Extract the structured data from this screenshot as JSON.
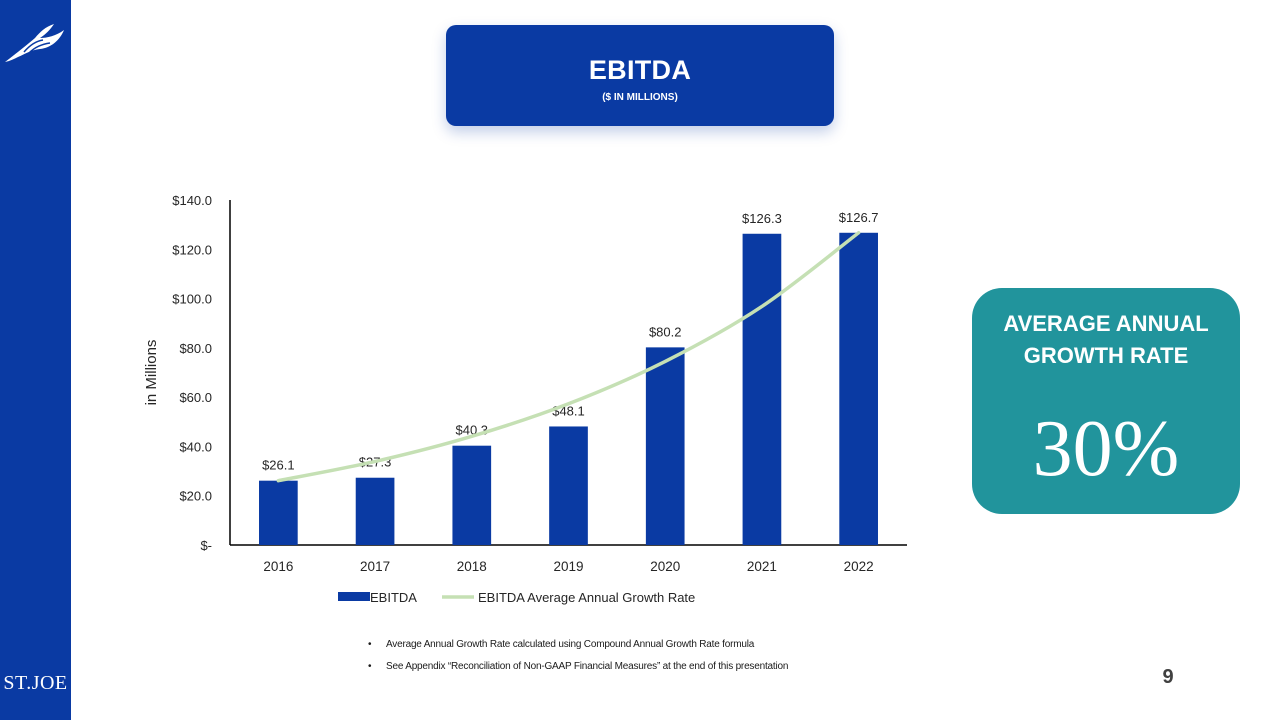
{
  "slide": {
    "title": "EBITDA",
    "subtitle": "($ IN MILLIONS)",
    "page_number": "9",
    "brand_logo_text": "ST.JOE",
    "growth_card": {
      "label": "AVERAGE ANNUAL GROWTH RATE",
      "value": "30%"
    },
    "notes": [
      "Average Annual Growth Rate calculated using Compound Annual Growth Rate formula",
      "See Appendix “Reconciliation of Non-GAAP Financial Measures” at the end of this presentation"
    ],
    "colors": {
      "sidebar": "#0a3aa3",
      "bar": "#0a3aa3",
      "trend_line": "#c5e0b4",
      "growth_card": "#21949c"
    },
    "icons": [
      "bird-logo-icon"
    ]
  },
  "chart_data": {
    "type": "bar",
    "title": "",
    "xlabel": "",
    "ylabel": "in Millions",
    "categories": [
      "2016",
      "2017",
      "2018",
      "2019",
      "2020",
      "2021",
      "2022"
    ],
    "series": [
      {
        "name": "EBITDA",
        "type": "bar",
        "values": [
          26.1,
          27.3,
          40.3,
          48.1,
          80.2,
          126.3,
          126.7
        ],
        "data_labels": [
          "$26.1",
          "$27.3",
          "$40.3",
          "$48.1",
          "$80.2",
          "$126.3",
          "$126.7"
        ]
      },
      {
        "name": "EBITDA Average Annual Growth Rate",
        "type": "line",
        "values": [
          26.1,
          33.9,
          44.1,
          57.3,
          74.5,
          96.8,
          126.7
        ]
      }
    ],
    "ylim": [
      0,
      140
    ],
    "yticks": [
      0,
      20,
      40,
      60,
      80,
      100,
      120,
      140
    ],
    "ytick_labels": [
      "$-",
      "$20.0",
      "$40.0",
      "$60.0",
      "$80.0",
      "$100.0",
      "$120.0",
      "$140.0"
    ],
    "grid": false,
    "legend_position": "bottom"
  }
}
